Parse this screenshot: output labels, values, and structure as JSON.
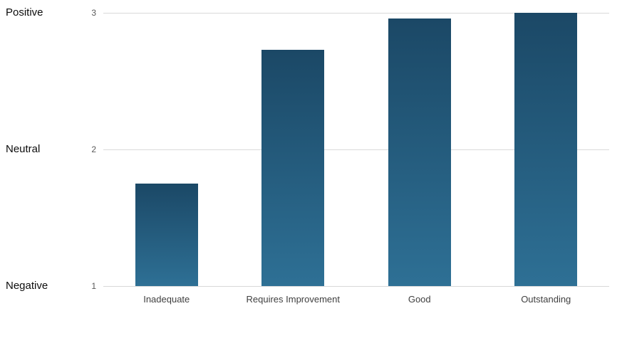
{
  "chart_data": {
    "type": "bar",
    "title": "",
    "xlabel": "",
    "ylabel": "",
    "categories": [
      "Inadequate",
      "Requires Improvement",
      "Good",
      "Outstanding"
    ],
    "values": [
      1.75,
      2.73,
      2.96,
      3.0
    ],
    "ylim": [
      1,
      3
    ],
    "y_ticks": [
      {
        "value": 3,
        "num_label": "3",
        "text_label": "Positive"
      },
      {
        "value": 2,
        "num_label": "2",
        "text_label": "Neutral"
      },
      {
        "value": 1,
        "num_label": "1",
        "text_label": "Negative"
      }
    ],
    "grid": "horizontal",
    "legend": "none",
    "bar_color_top": "#1b4866",
    "bar_color_bottom": "#2e7095",
    "gridline_color": "#d9d9d9",
    "background_color": "#ffffff"
  }
}
